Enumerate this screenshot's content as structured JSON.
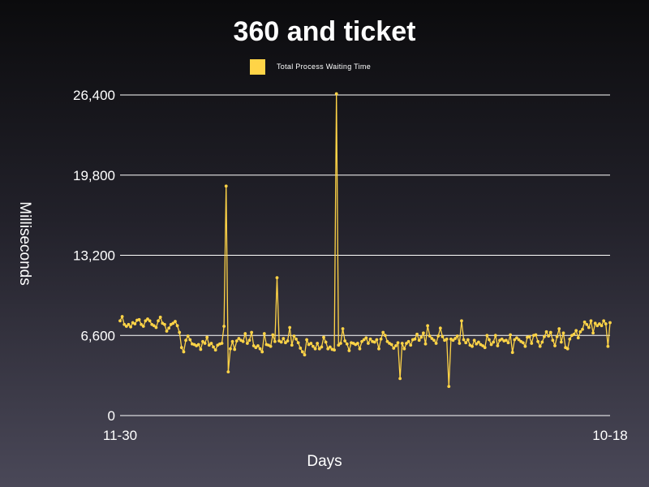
{
  "chart_data": {
    "type": "line",
    "title": "360 and ticket",
    "xlabel": "Days",
    "ylabel": "Milliseconds",
    "ylim": [
      0,
      26400
    ],
    "yticks": [
      0,
      6600,
      13200,
      19800,
      26400
    ],
    "ytick_labels": [
      "0",
      "6,600",
      "13,200",
      "19,800",
      "26,400"
    ],
    "xtick_labels": [
      "11-30",
      "10-18"
    ],
    "grid": true,
    "legend_position": "top-center",
    "series": [
      {
        "name": "Total Process Waiting Time",
        "color": "#ffd447",
        "values": [
          7800,
          8150,
          7500,
          7350,
          7500,
          7300,
          7650,
          7550,
          7850,
          7900,
          7500,
          7350,
          7800,
          7950,
          7800,
          7500,
          7400,
          7250,
          7800,
          8100,
          7600,
          7500,
          6950,
          7200,
          7500,
          7600,
          7750,
          7400,
          6850,
          5600,
          5250,
          6200,
          6550,
          6250,
          5900,
          5850,
          5750,
          5850,
          5450,
          6100,
          5950,
          6450,
          5800,
          5950,
          5650,
          5400,
          5800,
          5900,
          5950,
          7350,
          18900,
          3600,
          5500,
          6100,
          5450,
          6150,
          6350,
          6200,
          6100,
          6750,
          5950,
          6200,
          6850,
          5750,
          5600,
          5750,
          5500,
          5250,
          6750,
          5850,
          5800,
          5700,
          6650,
          6100,
          11350,
          6150,
          6050,
          6350,
          6000,
          6150,
          7250,
          5800,
          6550,
          6300,
          6000,
          5550,
          5250,
          5000,
          6250,
          5850,
          5950,
          5700,
          5500,
          5950,
          5500,
          5650,
          6450,
          6050,
          5500,
          5650,
          5450,
          5400,
          26500,
          5800,
          5950,
          7150,
          6150,
          5900,
          5350,
          6000,
          5950,
          5850,
          5950,
          5500,
          6100,
          6250,
          6400,
          5950,
          6300,
          6100,
          6050,
          6250,
          5500,
          6300,
          6850,
          6600,
          6100,
          5950,
          5850,
          5550,
          5750,
          6000,
          3050,
          5950,
          5500,
          5950,
          6100,
          5800,
          6250,
          6300,
          6700,
          6200,
          6450,
          6800,
          5900,
          7400,
          6550,
          6350,
          6200,
          5950,
          6550,
          7200,
          6500,
          6200,
          6300,
          2400,
          6300,
          6200,
          6350,
          6550,
          5950,
          7800,
          6250,
          6000,
          6250,
          5800,
          5700,
          6200,
          5900,
          6050,
          5850,
          5750,
          5600,
          6600,
          6250,
          5850,
          6050,
          6600,
          5750,
          6200,
          6300,
          6150,
          6200,
          6000,
          6650,
          5200,
          6250,
          6400,
          6250,
          6100,
          6000,
          5700,
          6450,
          6500,
          5950,
          6600,
          6650,
          6100,
          5700,
          6050,
          6500,
          6900,
          6550,
          6850,
          6200,
          5750,
          6500,
          7150,
          6050,
          6800,
          5600,
          5500,
          6300,
          6600,
          6700,
          7000,
          6400,
          6900,
          7100,
          7700,
          7500,
          7250,
          7800,
          6800,
          7600,
          7400,
          7550,
          7400,
          7800,
          7550,
          5700,
          7650
        ]
      }
    ]
  }
}
